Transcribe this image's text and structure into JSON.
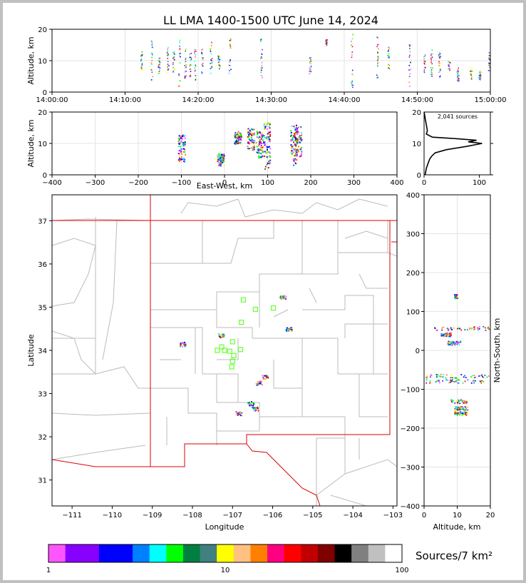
{
  "title": "LL LMA 1400-1500 UTC June 14, 2024",
  "chart_data": [
    {
      "panel": "altitude-vs-time",
      "type": "scatter",
      "ylabel": "Altitude, km",
      "ylim": [
        0,
        20
      ],
      "y_ticks": [
        "0",
        "10",
        "20"
      ],
      "x_ticks": [
        "14:00:00",
        "14:10:00",
        "14:20:00",
        "14:30:00",
        "14:40:00",
        "14:50:00",
        "15:00:00"
      ],
      "x_range_minutes": [
        0,
        60
      ],
      "grid": true,
      "bursts": [
        {
          "t": 12.2,
          "z": [
            6,
            13
          ]
        },
        {
          "t": 13.6,
          "z": [
            4,
            17
          ]
        },
        {
          "t": 14.6,
          "z": [
            6,
            12
          ]
        },
        {
          "t": 15.8,
          "z": [
            5,
            15
          ]
        },
        {
          "t": 16.6,
          "z": [
            5,
            13
          ]
        },
        {
          "t": 17.4,
          "z": [
            2,
            17
          ]
        },
        {
          "t": 18.2,
          "z": [
            4,
            14
          ]
        },
        {
          "t": 18.9,
          "z": [
            5,
            13
          ]
        },
        {
          "t": 19.5,
          "z": [
            4,
            14
          ]
        },
        {
          "t": 20.5,
          "z": [
            6,
            14
          ]
        },
        {
          "t": 21.7,
          "z": [
            6,
            16
          ]
        },
        {
          "t": 22.8,
          "z": [
            7,
            12
          ]
        },
        {
          "t": 24.3,
          "z": [
            6,
            18
          ]
        },
        {
          "t": 28.6,
          "z": [
            4,
            18
          ]
        },
        {
          "t": 35.3,
          "z": [
            6,
            13
          ]
        },
        {
          "t": 37.5,
          "z": [
            15,
            17
          ]
        },
        {
          "t": 41.0,
          "z": [
            1,
            19
          ]
        },
        {
          "t": 44.5,
          "z": [
            4,
            18
          ]
        },
        {
          "t": 46.0,
          "z": [
            7,
            15
          ]
        },
        {
          "t": 48.9,
          "z": [
            2,
            16
          ]
        },
        {
          "t": 50.9,
          "z": [
            6,
            13
          ]
        },
        {
          "t": 51.9,
          "z": [
            5,
            14
          ]
        },
        {
          "t": 53.0,
          "z": [
            5,
            13
          ]
        },
        {
          "t": 54.3,
          "z": [
            7,
            10
          ]
        },
        {
          "t": 55.5,
          "z": [
            3,
            8
          ]
        },
        {
          "t": 57.3,
          "z": [
            4,
            8
          ]
        },
        {
          "t": 58.5,
          "z": [
            4,
            7
          ]
        },
        {
          "t": 59.8,
          "z": [
            7,
            13
          ]
        }
      ]
    },
    {
      "panel": "altitude-vs-east-west",
      "type": "scatter",
      "xlabel": "East-West, km",
      "ylabel": "Altitude, km",
      "xlim": [
        -400,
        400
      ],
      "ylim": [
        0,
        20
      ],
      "x_ticks": [
        "−400",
        "−300",
        "−200",
        "−100",
        "0",
        "100",
        "200",
        "300",
        "400"
      ],
      "y_ticks": [
        "0",
        "10",
        "20"
      ],
      "grid": true,
      "clusters": [
        {
          "x": -100,
          "z": [
            4,
            13
          ]
        },
        {
          "x": -10,
          "z": [
            3,
            7
          ]
        },
        {
          "x": 30,
          "z": [
            10,
            14
          ]
        },
        {
          "x": 60,
          "z": [
            8,
            15
          ]
        },
        {
          "x": 80,
          "z": [
            5,
            14
          ]
        },
        {
          "x": 97,
          "z": [
            2,
            17
          ]
        },
        {
          "x": 160,
          "z": [
            3,
            16
          ]
        },
        {
          "x": 170,
          "z": [
            6,
            16
          ]
        }
      ]
    },
    {
      "panel": "altitude-histogram",
      "type": "line",
      "annotation": "2,041 sources",
      "xlim": [
        0,
        120
      ],
      "ylim": [
        0,
        20
      ],
      "x_ticks": [
        "0",
        "100"
      ],
      "y_ticks": [
        "0",
        "10",
        "20"
      ],
      "profile": [
        {
          "z": 0,
          "n": 2
        },
        {
          "z": 1,
          "n": 3
        },
        {
          "z": 2,
          "n": 4
        },
        {
          "z": 3,
          "n": 6
        },
        {
          "z": 4,
          "n": 8
        },
        {
          "z": 5,
          "n": 10
        },
        {
          "z": 6,
          "n": 14
        },
        {
          "z": 7,
          "n": 20
        },
        {
          "z": 8,
          "n": 40
        },
        {
          "z": 9,
          "n": 75
        },
        {
          "z": 10,
          "n": 105
        },
        {
          "z": 10.5,
          "n": 80
        },
        {
          "z": 11,
          "n": 95
        },
        {
          "z": 11.5,
          "n": 60
        },
        {
          "z": 12,
          "n": 15
        },
        {
          "z": 13,
          "n": 4
        },
        {
          "z": 14,
          "n": 6
        },
        {
          "z": 15,
          "n": 5
        },
        {
          "z": 16,
          "n": 4
        },
        {
          "z": 17,
          "n": 3
        },
        {
          "z": 18,
          "n": 2
        },
        {
          "z": 19,
          "n": 1
        },
        {
          "z": 20,
          "n": 0
        }
      ]
    },
    {
      "panel": "plan-view-map",
      "type": "scatter",
      "xlabel": "Longitude",
      "ylabel": "Latitude",
      "xlim": [
        -111.5,
        -102.9
      ],
      "ylim": [
        30.4,
        37.6
      ],
      "x_ticks": [
        "−111",
        "−110",
        "−109",
        "−108",
        "−107",
        "−106",
        "−105",
        "−104",
        "−103"
      ],
      "y_ticks": [
        "31",
        "32",
        "33",
        "34",
        "35",
        "36",
        "37"
      ],
      "stations": [
        {
          "lon": -106.73,
          "lat": 35.17
        },
        {
          "lon": -106.43,
          "lat": 34.95
        },
        {
          "lon": -105.98,
          "lat": 34.98
        },
        {
          "lon": -106.78,
          "lat": 34.65
        },
        {
          "lon": -107.0,
          "lat": 34.2
        },
        {
          "lon": -107.27,
          "lat": 34.08
        },
        {
          "lon": -107.38,
          "lat": 34.0
        },
        {
          "lon": -107.2,
          "lat": 34.0
        },
        {
          "lon": -107.07,
          "lat": 33.98
        },
        {
          "lon": -106.8,
          "lat": 34.02
        },
        {
          "lon": -106.97,
          "lat": 33.88
        },
        {
          "lon": -107.0,
          "lat": 33.75
        },
        {
          "lon": -107.02,
          "lat": 33.62
        }
      ],
      "clusters": [
        {
          "lon": -105.75,
          "lat": 35.25
        },
        {
          "lon": -105.6,
          "lat": 34.5
        },
        {
          "lon": -107.3,
          "lat": 34.35
        },
        {
          "lon": -108.25,
          "lat": 34.15
        },
        {
          "lon": -106.2,
          "lat": 33.4
        },
        {
          "lon": -106.35,
          "lat": 33.25
        },
        {
          "lon": -106.55,
          "lat": 32.78
        },
        {
          "lon": -106.45,
          "lat": 32.65
        },
        {
          "lon": -106.85,
          "lat": 32.55
        }
      ]
    },
    {
      "panel": "north-south-vs-altitude",
      "type": "scatter",
      "xlabel": "Altitude, km",
      "ylabel": "North-South, km",
      "xlim": [
        0,
        20
      ],
      "ylim": [
        -400,
        400
      ],
      "x_ticks": [
        "0",
        "10",
        "20"
      ],
      "y_ticks": [
        "−400",
        "−300",
        "−200",
        "−100",
        "0",
        "100",
        "200",
        "300",
        "400"
      ],
      "grid": true,
      "clusters": [
        {
          "z": [
            9,
            10
          ],
          "ns": 140
        },
        {
          "z": [
            3,
            20
          ],
          "ns": 58
        },
        {
          "z": [
            5,
            8
          ],
          "ns": 42
        },
        {
          "z": [
            7,
            11
          ],
          "ns": 20
        },
        {
          "z": [
            0,
            20
          ],
          "ns": -65
        },
        {
          "z": [
            0,
            18
          ],
          "ns": -78
        },
        {
          "z": [
            8,
            13
          ],
          "ns": -130
        },
        {
          "z": [
            9,
            13
          ],
          "ns": -148
        },
        {
          "z": [
            9,
            13
          ],
          "ns": -160
        }
      ]
    }
  ],
  "colorbar": {
    "label": "Sources/7 km²",
    "tick_labels": [
      "1",
      "10",
      "100"
    ],
    "colors": [
      "#ff55ff",
      "#8800ff",
      "#8800ff",
      "#0000ff",
      "#0000ff",
      "#0080ff",
      "#00ffff",
      "#00ff00",
      "#008040",
      "#408080",
      "#ffff00",
      "#ffc080",
      "#ff8000",
      "#ff0080",
      "#ff0000",
      "#c00000",
      "#800000",
      "#000000",
      "#808080",
      "#c0c0c0",
      "#ffffff"
    ],
    "scatter_palette": [
      "#ff55ff",
      "#8800ff",
      "#0000ff",
      "#0080ff",
      "#00ffff",
      "#00ff00",
      "#008040",
      "#ffff00",
      "#ff8000",
      "#ff0000"
    ],
    "station_color": "#66ff33",
    "border_color": "#dd0000"
  }
}
